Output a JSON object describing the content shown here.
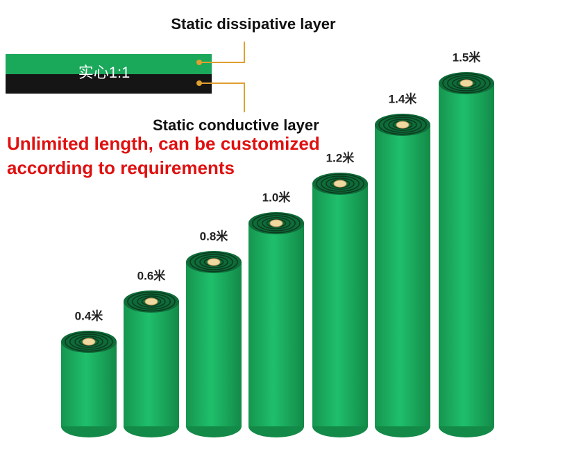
{
  "layer_diagram": {
    "top_label": "Static dissipative layer",
    "strip_label": "实心1:1",
    "bottom_label": "Static conductive layer"
  },
  "note": {
    "lines": [
      "Unlimited length, can be customized",
      "according to requirements"
    ]
  },
  "rolls": [
    "0.4米",
    "0.6米",
    "0.8米",
    "1.0米",
    "1.2米",
    "1.4米",
    "1.5米"
  ]
}
